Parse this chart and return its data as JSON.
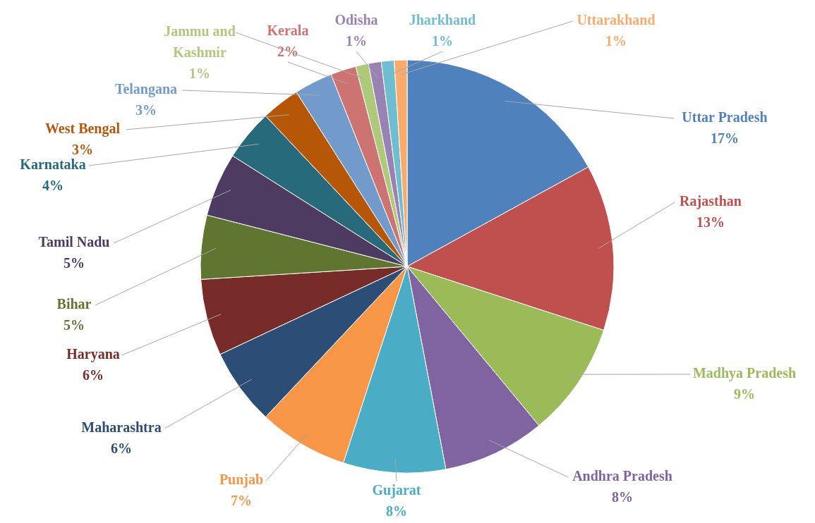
{
  "chart_data": {
    "type": "pie",
    "data_labels": true,
    "categories": [
      "Uttar Pradesh",
      "Rajasthan",
      "Madhya Pradesh",
      "Andhra Pradesh",
      "Gujarat",
      "Punjab",
      "Maharashtra",
      "Haryana",
      "Bihar",
      "Tamil Nadu",
      "Karnataka",
      "West Bengal",
      "Telangana",
      "Kerala",
      "Jammu and Kashmir",
      "Odisha",
      "Jharkhand",
      "Uttarakhand"
    ],
    "values": [
      17,
      13,
      9,
      8,
      8,
      7,
      6,
      6,
      5,
      5,
      4,
      3,
      3,
      2,
      1,
      1,
      1,
      1
    ],
    "value_labels": [
      "17%",
      "13%",
      "9%",
      "8%",
      "8%",
      "7%",
      "6%",
      "6%",
      "5%",
      "5%",
      "4%",
      "3%",
      "3%",
      "2%",
      "1%",
      "1%",
      "1%",
      "1%"
    ],
    "colors": [
      "#4f81bd",
      "#c0504d",
      "#9bbb59",
      "#8064a2",
      "#4bacc6",
      "#f79646",
      "#2c4d75",
      "#772c2a",
      "#5f7530",
      "#4d3b62",
      "#276a7c",
      "#b65708",
      "#729aca",
      "#cd7371",
      "#afc97a",
      "#9983b5",
      "#6fbdd1",
      "#f9ab6b"
    ]
  }
}
